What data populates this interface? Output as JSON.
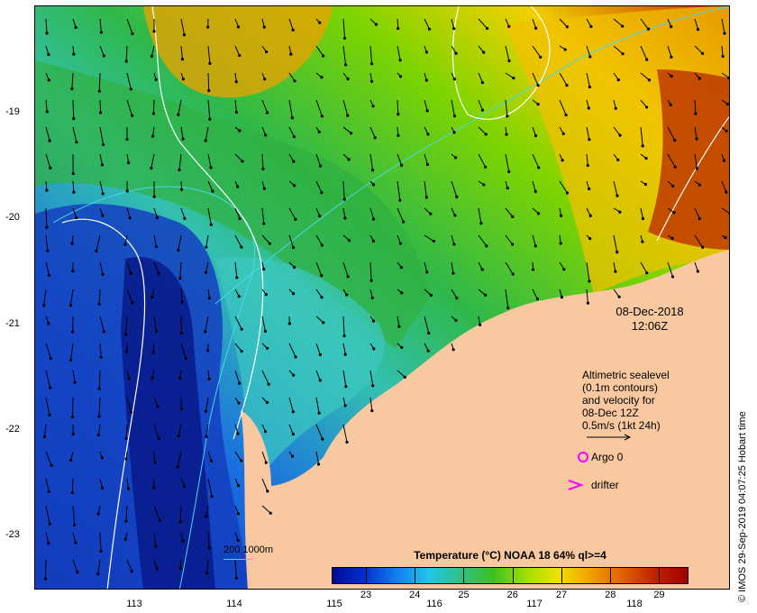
{
  "map": {
    "date": "08-Dec-2018",
    "time": "12:06Z",
    "lat_labels": [
      "-19",
      "-20",
      "-21",
      "-22",
      "-23"
    ],
    "lon_labels": [
      "113",
      "114",
      "115",
      "116",
      "117",
      "118"
    ],
    "legend": {
      "line1": "Altimetric sealevel",
      "line2": "(0.1m contours)",
      "line3": "and velocity for",
      "line4": "08-Dec 12Z",
      "scale": "0.5m/s (1kt 24h)",
      "argo": "Argo 0",
      "drifter": "drifter",
      "depth": "200  1000m"
    },
    "colorbar": {
      "title": "Temperature (°C) NOAA 18 64% ql>=4",
      "ticks": [
        "23",
        "24",
        "25",
        "26",
        "27",
        "28",
        "29"
      ],
      "min": 22.3,
      "max": 29.6
    },
    "credit": "© IMOS 29-Sep-2019 04:07:25 Hobart time",
    "colors": {
      "land": "#f8c8a0",
      "cold": "#000a96",
      "warm": "#a00000",
      "argo": "#ff00ff",
      "isobath": "#4ad8e8",
      "contour": "#ffffff"
    }
  }
}
